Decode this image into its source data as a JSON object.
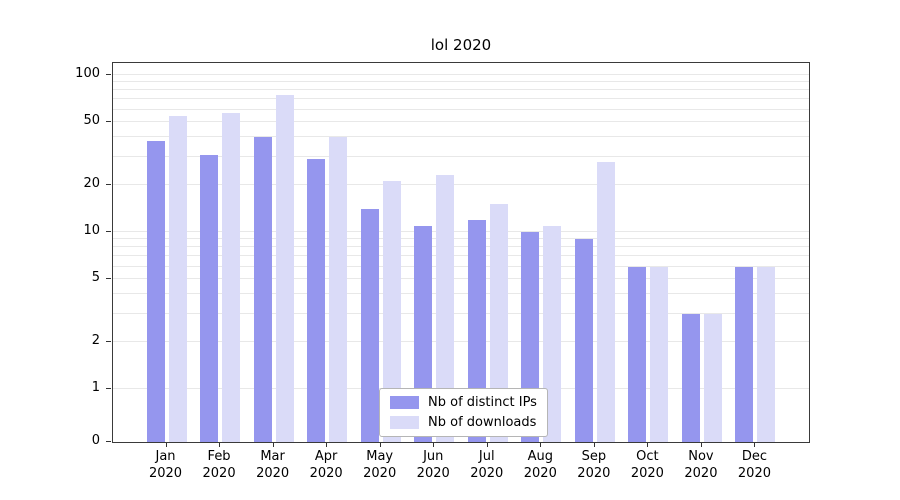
{
  "chart_data": {
    "type": "bar",
    "title": "lol 2020",
    "categories": [
      "Jan",
      "Feb",
      "Mar",
      "Apr",
      "May",
      "Jun",
      "Jul",
      "Aug",
      "Sep",
      "Oct",
      "Nov",
      "Dec"
    ],
    "year_label": "2020",
    "series": [
      {
        "name": "Nb of distinct IPs",
        "color": "#9596ee",
        "values": [
          38,
          31,
          40,
          29,
          14,
          11,
          12,
          10,
          9,
          6,
          3,
          6
        ]
      },
      {
        "name": "Nb of downloads",
        "color": "#dadbf8",
        "values": [
          55,
          57,
          75,
          40,
          21,
          23,
          15,
          11,
          28,
          6,
          3,
          6
        ]
      }
    ],
    "yscale": "symlog",
    "y_ticks": [
      0,
      1,
      2,
      5,
      10,
      20,
      50,
      100
    ],
    "grid_values": [
      1,
      2,
      3,
      4,
      5,
      6,
      7,
      8,
      9,
      10,
      20,
      30,
      40,
      50,
      60,
      70,
      80,
      90,
      100
    ],
    "ylim": [
      0,
      110
    ],
    "grid": "horizontal",
    "legend_position": "lower center",
    "colors": {
      "axis": "#3a3a3a",
      "gridline": "#e8e8e8",
      "background": "#ffffff"
    }
  }
}
